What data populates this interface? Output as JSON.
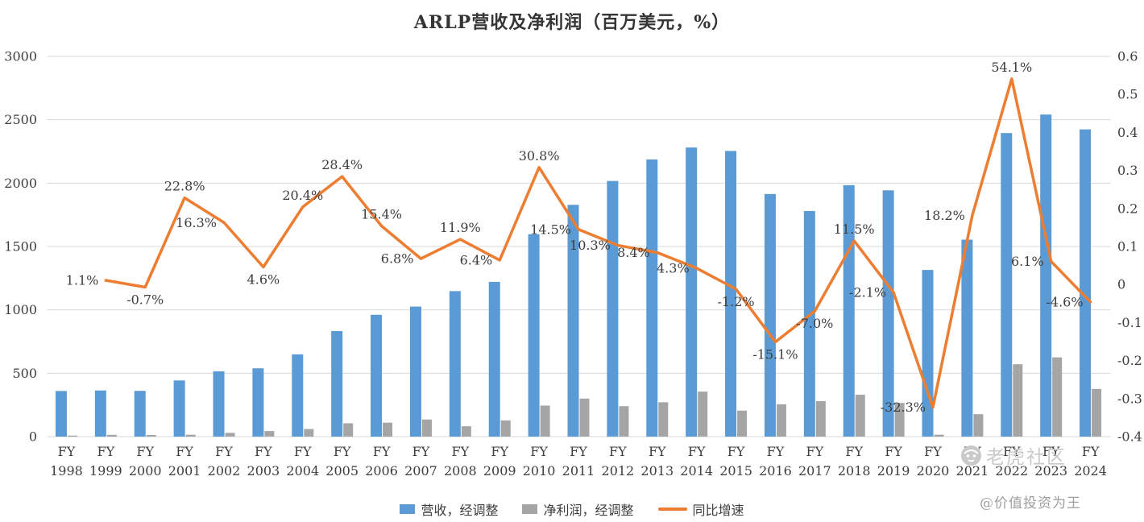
{
  "title": "ARLP营收及净利润（百万美元，%）",
  "watermark": {
    "brand": "老虎社区",
    "handle": "@价值投资为王"
  },
  "colors": {
    "revenue": "#5B9BD5",
    "net_profit": "#A5A5A5",
    "growth": "#ED7D31",
    "grid": "#D9D9D9",
    "text": "#3d3d3d",
    "watermark": "#c9c9c9"
  },
  "chart_data": {
    "type": "bar",
    "subtype": "combo bar+line, dual axis",
    "title": "ARLP营收及净利润（百万美元，%）",
    "x_prefix": "FY",
    "categories": [
      "1998",
      "1999",
      "2000",
      "2001",
      "2002",
      "2003",
      "2004",
      "2005",
      "2006",
      "2007",
      "2008",
      "2009",
      "2010",
      "2011",
      "2012",
      "2013",
      "2014",
      "2015",
      "2016",
      "2017",
      "2018",
      "2019",
      "2020",
      "2021",
      "2022",
      "2023",
      "2024"
    ],
    "left_axis": {
      "min": 0,
      "max": 3000,
      "ticks": [
        0,
        500,
        1000,
        1500,
        2000,
        2500,
        3000
      ]
    },
    "right_axis": {
      "min": -0.4,
      "max": 0.6,
      "ticks": [
        0.6,
        0.5,
        0.4,
        0.3,
        0.2,
        0.1,
        0,
        -0.1,
        -0.2,
        -0.3,
        -0.4
      ]
    },
    "grid": true,
    "legend_position": "bottom",
    "series": [
      {
        "name": "营收，经调整",
        "type": "bar",
        "axis": "left",
        "values": [
          360,
          364,
          361,
          443,
          515,
          539,
          649,
          833,
          961,
          1026,
          1148,
          1221,
          1597,
          1829,
          2017,
          2187,
          2281,
          2254,
          1914,
          1780,
          1984,
          1943,
          1315,
          1554,
          2395,
          2541,
          2424
        ]
      },
      {
        "name": "净利润，经调整",
        "type": "bar",
        "axis": "left",
        "values": [
          8,
          14,
          13,
          15,
          30,
          44,
          60,
          105,
          110,
          135,
          82,
          128,
          245,
          300,
          240,
          271,
          355,
          205,
          255,
          280,
          331,
          266,
          15,
          177,
          571,
          625,
          376
        ]
      },
      {
        "name": "同比增速",
        "type": "line",
        "axis": "right",
        "values_percent": [
          null,
          1.1,
          -0.7,
          22.8,
          16.3,
          4.6,
          20.4,
          28.4,
          15.4,
          6.8,
          11.9,
          6.4,
          30.8,
          14.5,
          10.3,
          8.4,
          4.3,
          -1.2,
          -15.1,
          -7.0,
          11.5,
          -2.1,
          -32.3,
          18.2,
          54.1,
          6.1,
          -4.6
        ],
        "labels": [
          null,
          "1.1%",
          "-0.7%",
          "22.8%",
          "16.3%",
          "4.6%",
          "20.4%",
          "28.4%",
          "15.4%",
          "6.8%",
          "11.9%",
          "6.4%",
          "30.8%",
          "14.5%",
          "10.3%",
          "8.4%",
          "4.3%",
          "-1.2%",
          "-15.1%",
          "-7.0%",
          "11.5%",
          "-2.1%",
          "-32.3%",
          "18.2%",
          "54.1%",
          "6.1%",
          "-4.6%"
        ],
        "label_positions": [
          null,
          "left",
          "below",
          "above",
          "left",
          "below",
          "above",
          "above",
          "above",
          "left",
          "above",
          "left",
          "above",
          "left",
          "left",
          "left",
          "left",
          "below",
          "below",
          "below",
          "above",
          "left",
          "left",
          "left",
          "above",
          "left",
          "left"
        ]
      }
    ]
  }
}
